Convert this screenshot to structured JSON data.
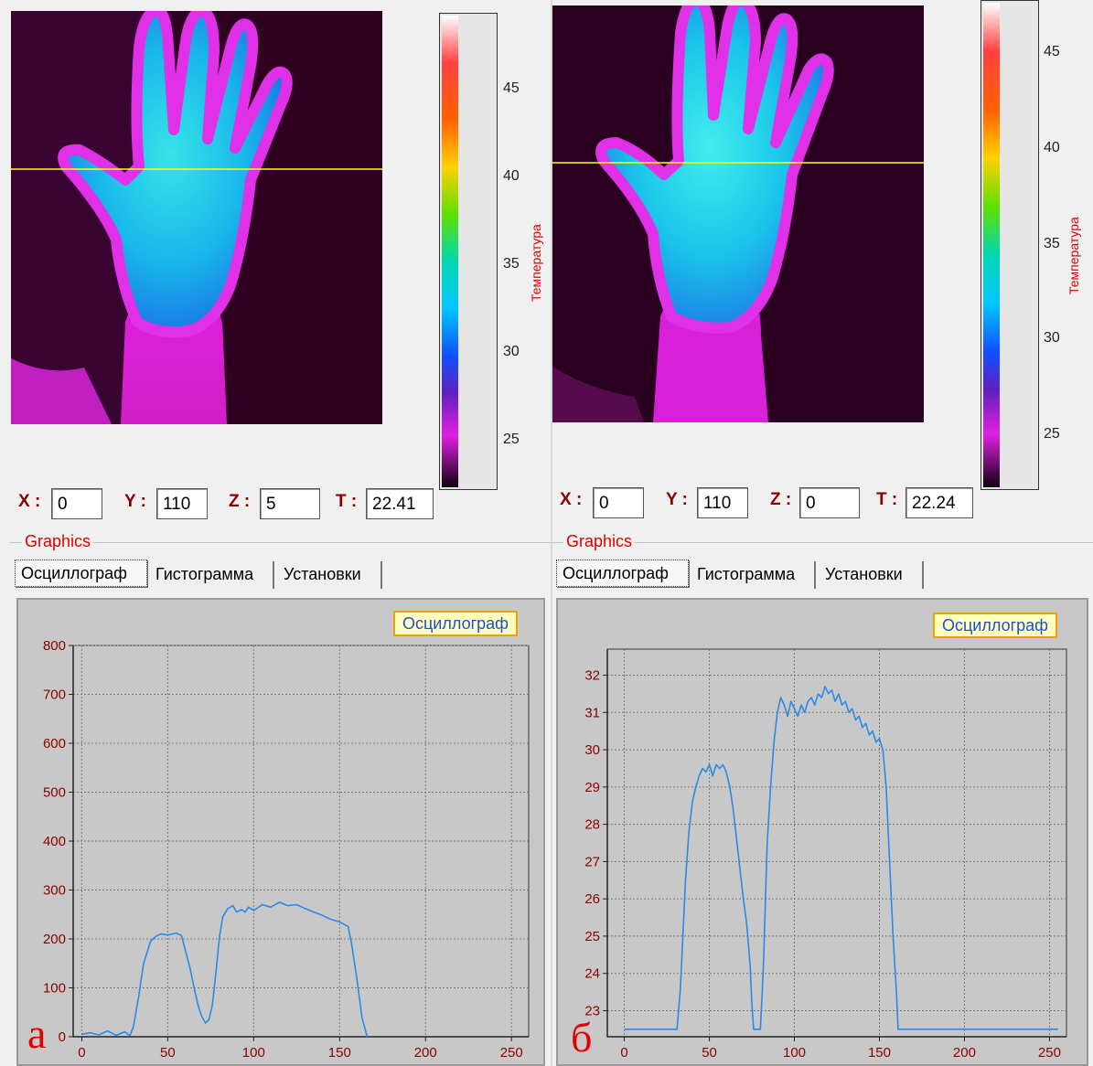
{
  "colors": {
    "cursor_line": "#ffff00",
    "trace": "#2a8ae8",
    "axis_labels": "#8b0000",
    "group_title": "#e00000",
    "tag_fill": "#ffffc0",
    "tag_border": "#f0a000",
    "tag_text": "#1e4fd0"
  },
  "panels": [
    {
      "letter": "а",
      "thermogram": {
        "subject": "hand thermogram",
        "cursor_row_fraction": 0.38,
        "colorbar": {
          "title": "Температура",
          "ticks": [
            "45",
            "40",
            "35",
            "30",
            "25"
          ],
          "tick_values": [
            45,
            40,
            35,
            30,
            25
          ],
          "range": [
            22.5,
            48
          ]
        }
      },
      "coords": {
        "x_label": "X",
        "x": "0",
        "y_label": "Y",
        "y": "110",
        "z_label": "Z",
        "z": "5",
        "t_label": "T",
        "t": "22.41"
      },
      "graphics": {
        "title": "Graphics",
        "tabs": [
          "Осциллограф",
          "Гистограмма",
          "Установки"
        ],
        "active_tab": 0,
        "chart_label": "Осциллограф"
      }
    },
    {
      "letter": "б",
      "thermogram": {
        "subject": "hand thermogram",
        "cursor_row_fraction": 0.38,
        "colorbar": {
          "title": "Температура",
          "ticks": [
            "45",
            "40",
            "35",
            "30",
            "25"
          ],
          "tick_values": [
            45,
            40,
            35,
            30,
            25
          ],
          "range": [
            22.5,
            47.5
          ]
        }
      },
      "coords": {
        "x_label": "X",
        "x": "0",
        "y_label": "Y",
        "y": "110",
        "z_label": "Z",
        "z": "0",
        "t_label": "T",
        "t": "22.24"
      },
      "graphics": {
        "title": "Graphics",
        "tabs": [
          "Осциллограф",
          "Гистограмма",
          "Установки"
        ],
        "active_tab": 0,
        "chart_label": "Осциллограф"
      }
    }
  ],
  "chart_data": [
    {
      "type": "line",
      "title": "Осциллограф",
      "xlim": [
        -5,
        260
      ],
      "ylim": [
        0,
        800
      ],
      "x_ticks": [
        0,
        50,
        100,
        150,
        200,
        250
      ],
      "y_ticks": [
        0,
        100,
        200,
        300,
        400,
        500,
        600,
        700,
        800
      ],
      "grid": true,
      "series": [
        {
          "x": [
            0,
            5,
            10,
            15,
            20,
            25,
            28,
            30,
            33,
            36,
            40,
            43,
            46,
            50,
            55,
            58,
            60,
            63,
            66,
            68,
            70,
            72,
            74,
            76,
            78,
            80,
            82,
            85,
            88,
            90,
            93,
            95,
            97,
            100,
            105,
            110,
            115,
            120,
            125,
            130,
            135,
            140,
            145,
            150,
            155,
            157,
            160,
            163,
            166
          ],
          "y": [
            5,
            8,
            4,
            12,
            3,
            10,
            2,
            20,
            80,
            150,
            195,
            205,
            210,
            208,
            212,
            207,
            180,
            140,
            90,
            60,
            40,
            28,
            35,
            65,
            130,
            200,
            245,
            262,
            268,
            255,
            260,
            255,
            265,
            258,
            270,
            265,
            275,
            268,
            270,
            262,
            255,
            248,
            240,
            235,
            225,
            190,
            120,
            40,
            0
          ]
        }
      ]
    },
    {
      "type": "line",
      "title": "Осциллограф",
      "xlim": [
        -10,
        260
      ],
      "ylim": [
        22.3,
        32.7
      ],
      "x_ticks": [
        0,
        50,
        100,
        150,
        200,
        250
      ],
      "y_ticks": [
        23,
        24,
        25,
        26,
        27,
        28,
        29,
        30,
        31,
        32
      ],
      "grid": true,
      "series": [
        {
          "x": [
            0,
            10,
            20,
            30,
            31,
            33,
            36,
            38,
            40,
            42,
            44,
            46,
            48,
            50,
            52,
            54,
            56,
            58,
            60,
            62,
            64,
            66,
            68,
            70,
            72,
            74,
            75,
            76,
            80,
            81,
            82,
            83,
            84,
            86,
            88,
            90,
            92,
            94,
            96,
            98,
            100,
            102,
            104,
            106,
            108,
            110,
            112,
            114,
            116,
            118,
            120,
            122,
            124,
            126,
            128,
            130,
            132,
            134,
            136,
            138,
            140,
            142,
            144,
            146,
            148,
            150,
            152,
            154,
            156,
            158,
            160,
            161,
            170,
            200,
            250,
            255
          ],
          "y": [
            22.5,
            22.5,
            22.5,
            22.5,
            22.5,
            23.6,
            26.5,
            27.8,
            28.6,
            29.0,
            29.3,
            29.5,
            29.4,
            29.6,
            29.3,
            29.6,
            29.5,
            29.6,
            29.4,
            29.0,
            28.4,
            27.6,
            26.8,
            26.0,
            25.3,
            24.2,
            23.2,
            22.5,
            22.5,
            23.4,
            24.5,
            26.0,
            27.5,
            29.0,
            30.2,
            31.0,
            31.4,
            31.2,
            30.9,
            31.3,
            31.1,
            30.9,
            31.2,
            31.0,
            31.3,
            31.4,
            31.2,
            31.5,
            31.4,
            31.7,
            31.5,
            31.6,
            31.3,
            31.5,
            31.2,
            31.3,
            31.0,
            31.1,
            30.8,
            30.9,
            30.6,
            30.7,
            30.4,
            30.5,
            30.2,
            30.3,
            30.0,
            29.0,
            27.0,
            25.0,
            23.5,
            22.5,
            22.5,
            22.5,
            22.5,
            22.5
          ]
        }
      ]
    }
  ]
}
